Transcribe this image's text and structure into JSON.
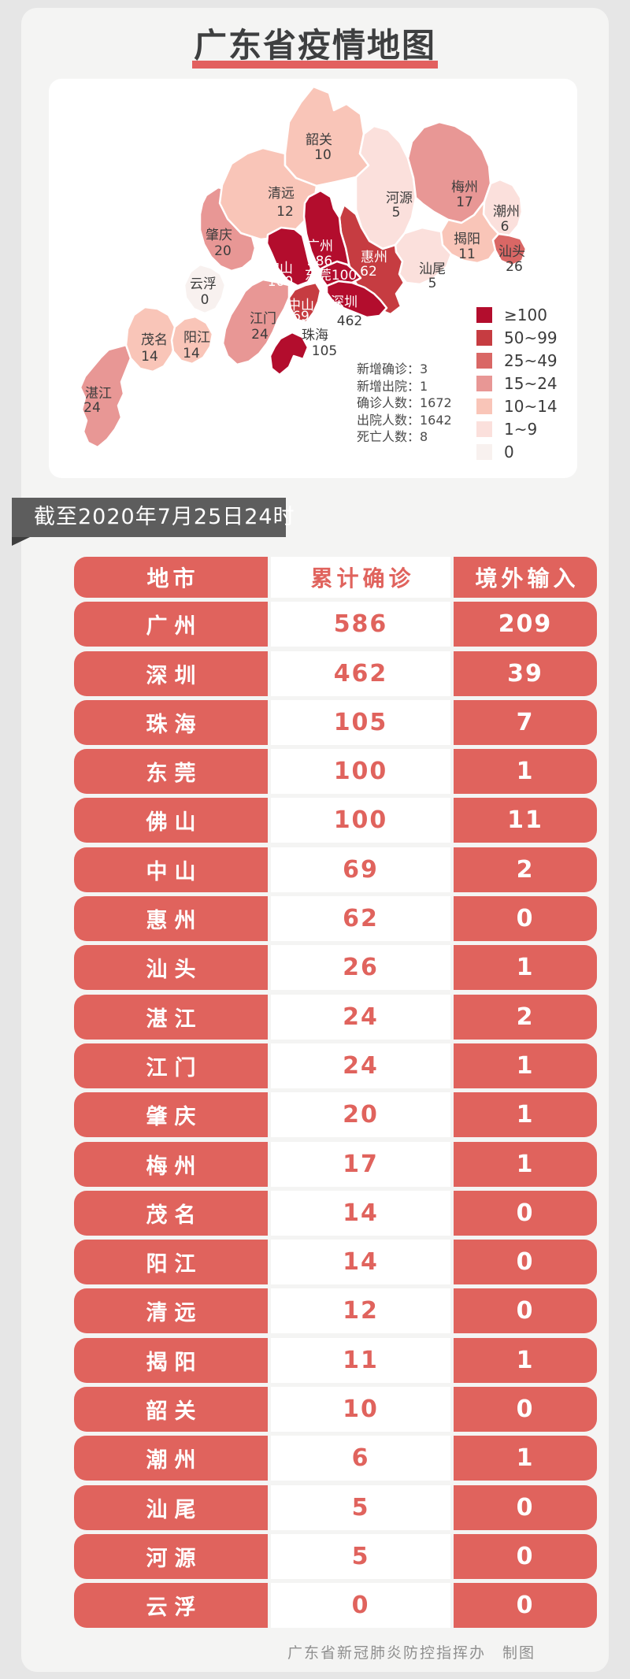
{
  "title": "广东省疫情地图",
  "banner": "截至2020年7月25日24时",
  "footer": "广东省新冠肺炎防控指挥办　制图",
  "colors": {
    "accent_red": "#e0635d",
    "title_underline": "#e2605f",
    "banner_bg": "#5d5d5d",
    "bucket_100_plus": "#b30d2d",
    "bucket_50_99": "#c63c41",
    "bucket_25_49": "#d96765",
    "bucket_15_24": "#e89795",
    "bucket_10_14": "#f9c5b8",
    "bucket_1_9": "#fbe0dc",
    "bucket_0": "#f8f1ef"
  },
  "map": {
    "stats": [
      "新增确诊：3",
      "新增出院：1",
      "确诊人数：1672",
      "出院人数：1642",
      "死亡人数：8"
    ],
    "legend": [
      {
        "label": "≥100",
        "color": "#b30d2d"
      },
      {
        "label": "50~99",
        "color": "#c63c41"
      },
      {
        "label": "25~49",
        "color": "#d96765"
      },
      {
        "label": "15~24",
        "color": "#e89795"
      },
      {
        "label": "10~14",
        "color": "#f9c5b8"
      },
      {
        "label": "1~9",
        "color": "#fbe0dc"
      },
      {
        "label": "0",
        "color": "#f8f1ef"
      }
    ],
    "cities": [
      {
        "key": "zhanjiang",
        "name": "湛江",
        "value": "24",
        "color": "#e89795"
      },
      {
        "key": "maoming",
        "name": "茂名",
        "value": "14",
        "color": "#f9c5b8"
      },
      {
        "key": "yangjiang",
        "name": "阳江",
        "value": "14",
        "color": "#f9c5b8"
      },
      {
        "key": "yunfu",
        "name": "云浮",
        "value": "0",
        "color": "#f8f1ef"
      },
      {
        "key": "zhaoqing",
        "name": "肇庆",
        "value": "20",
        "color": "#e89795"
      },
      {
        "key": "qingyuan",
        "name": "清远",
        "value": "12",
        "color": "#f9c5b8"
      },
      {
        "key": "shaoguan",
        "name": "韶关",
        "value": "10",
        "color": "#f9c5b8"
      },
      {
        "key": "heyuan",
        "name": "河源",
        "value": "5",
        "color": "#fbe0dc"
      },
      {
        "key": "meizhou",
        "name": "梅州",
        "value": "17",
        "color": "#e89795"
      },
      {
        "key": "chaozhou",
        "name": "潮州",
        "value": "6",
        "color": "#fbe0dc"
      },
      {
        "key": "jieyang",
        "name": "揭阳",
        "value": "11",
        "color": "#f9c5b8"
      },
      {
        "key": "shantou",
        "name": "汕头",
        "value": "26",
        "color": "#d96765"
      },
      {
        "key": "shanwei",
        "name": "汕尾",
        "value": "5",
        "color": "#fbe0dc"
      },
      {
        "key": "jiangmen",
        "name": "江门",
        "value": "24",
        "color": "#e89795"
      },
      {
        "key": "huizhou",
        "name": "惠州",
        "value": "62",
        "color": "#c63c41"
      },
      {
        "key": "foshan",
        "name": "佛山",
        "value": "100",
        "color": "#b30d2d"
      },
      {
        "key": "guangzhou",
        "name": "广州",
        "value": "586",
        "color": "#b30d2d"
      },
      {
        "key": "dongguan",
        "name": "东莞",
        "value": "100",
        "color": "#b30d2d"
      },
      {
        "key": "shenzhen",
        "name": "深圳",
        "value": "462",
        "color": "#b30d2d"
      },
      {
        "key": "zhongshan",
        "name": "中山",
        "value": "69",
        "color": "#c63c41"
      },
      {
        "key": "zhuhai",
        "name": "珠海",
        "value": "105",
        "color": "#b30d2d"
      }
    ]
  },
  "table": {
    "headers": [
      "地市",
      "累计确诊",
      "境外输入"
    ],
    "rows": [
      [
        "广州",
        "586",
        "209"
      ],
      [
        "深圳",
        "462",
        "39"
      ],
      [
        "珠海",
        "105",
        "7"
      ],
      [
        "东莞",
        "100",
        "1"
      ],
      [
        "佛山",
        "100",
        "11"
      ],
      [
        "中山",
        "69",
        "2"
      ],
      [
        "惠州",
        "62",
        "0"
      ],
      [
        "汕头",
        "26",
        "1"
      ],
      [
        "湛江",
        "24",
        "2"
      ],
      [
        "江门",
        "24",
        "1"
      ],
      [
        "肇庆",
        "20",
        "1"
      ],
      [
        "梅州",
        "17",
        "1"
      ],
      [
        "茂名",
        "14",
        "0"
      ],
      [
        "阳江",
        "14",
        "0"
      ],
      [
        "清远",
        "12",
        "0"
      ],
      [
        "揭阳",
        "11",
        "1"
      ],
      [
        "韶关",
        "10",
        "0"
      ],
      [
        "潮州",
        "6",
        "1"
      ],
      [
        "汕尾",
        "5",
        "0"
      ],
      [
        "河源",
        "5",
        "0"
      ],
      [
        "云浮",
        "0",
        "0"
      ]
    ]
  },
  "chart_data": {
    "type": "table",
    "title": "广东省疫情地图",
    "as_of": "截至2020年7月25日24时",
    "columns": [
      "地市",
      "累计确诊",
      "境外输入"
    ],
    "rows": [
      [
        "广州",
        586,
        209
      ],
      [
        "深圳",
        462,
        39
      ],
      [
        "珠海",
        105,
        7
      ],
      [
        "东莞",
        100,
        1
      ],
      [
        "佛山",
        100,
        11
      ],
      [
        "中山",
        69,
        2
      ],
      [
        "惠州",
        62,
        0
      ],
      [
        "汕头",
        26,
        1
      ],
      [
        "湛江",
        24,
        2
      ],
      [
        "江门",
        24,
        1
      ],
      [
        "肇庆",
        20,
        1
      ],
      [
        "梅州",
        17,
        1
      ],
      [
        "茂名",
        14,
        0
      ],
      [
        "阳江",
        14,
        0
      ],
      [
        "清远",
        12,
        0
      ],
      [
        "揭阳",
        11,
        1
      ],
      [
        "韶关",
        10,
        0
      ],
      [
        "潮州",
        6,
        1
      ],
      [
        "汕尾",
        5,
        0
      ],
      [
        "河源",
        5,
        0
      ],
      [
        "云浮",
        0,
        0
      ]
    ],
    "summary": {
      "新增确诊": 3,
      "新增出院": 1,
      "确诊人数": 1672,
      "出院人数": 1642,
      "死亡人数": 8
    },
    "legend_buckets": [
      "≥100",
      "50~99",
      "25~49",
      "15~24",
      "10~14",
      "1~9",
      "0"
    ],
    "source": "广东省新冠肺炎防控指挥办"
  }
}
